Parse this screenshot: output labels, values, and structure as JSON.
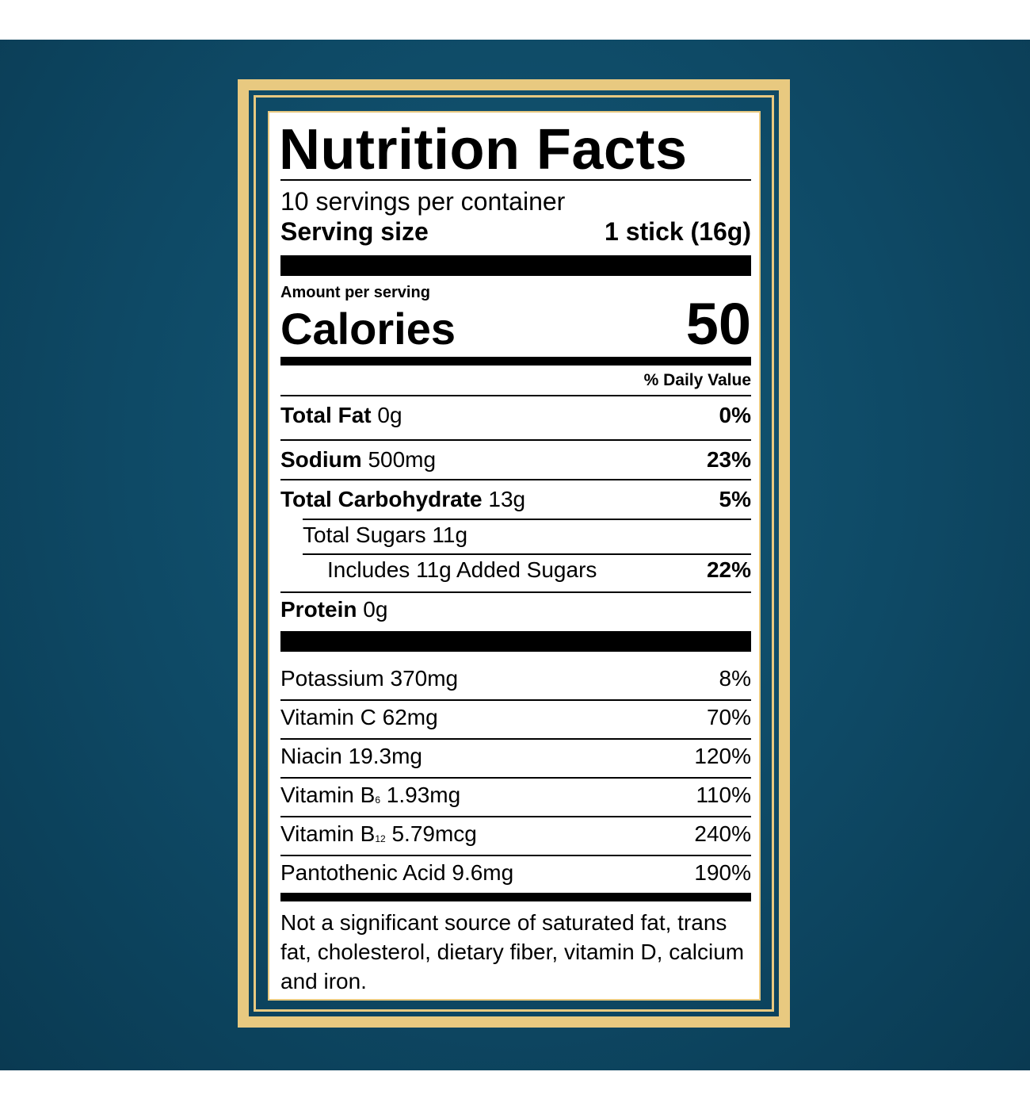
{
  "title": "Nutrition Facts",
  "servings": "10 servings per container",
  "serving_size": {
    "label": "Serving size",
    "value": "1 stick (16g)"
  },
  "calories": {
    "caption": "Amount per serving",
    "label": "Calories",
    "value": "50"
  },
  "dv_header": "% Daily Value",
  "nutrients": [
    {
      "name": "Total Fat",
      "amount": "0g",
      "dv": "0%"
    },
    {
      "name": "Sodium",
      "amount": "500mg",
      "dv": "23%"
    },
    {
      "name": "Total Carbohydrate",
      "amount": "13g",
      "dv": "5%"
    },
    {
      "name": "Total Sugars",
      "amount": "11g"
    },
    {
      "name": "Includes 11g Added Sugars",
      "dv": "22%"
    },
    {
      "name": "Protein",
      "amount": "0g"
    }
  ],
  "vitamins": [
    {
      "name": "Potassium",
      "amount": "370mg",
      "dv": "8%"
    },
    {
      "name": "Vitamin C",
      "amount": "62mg",
      "dv": "70%"
    },
    {
      "name": "Niacin",
      "amount": "19.3mg",
      "dv": "120%"
    },
    {
      "name": "Vitamin B",
      "sub": "6",
      "amount": "1.93mg",
      "dv": "110%"
    },
    {
      "name": "Vitamin B",
      "sub": "12",
      "amount": "5.79mcg",
      "dv": "240%"
    },
    {
      "name": "Pantothenic Acid",
      "amount": "9.6mg",
      "dv": "190%"
    }
  ],
  "footnote": "Not a significant source of saturated fat, trans fat, cholesterol, dietary fiber, vitamin D, calcium and iron."
}
